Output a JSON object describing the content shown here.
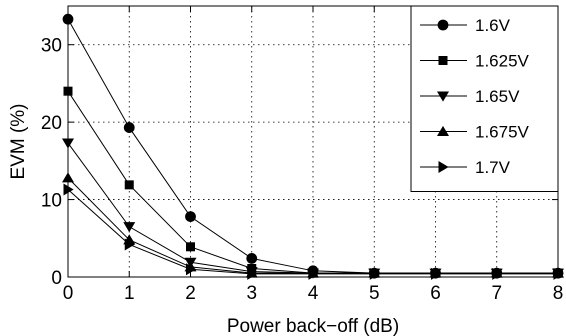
{
  "chart_data": {
    "type": "line",
    "title": "",
    "xlabel": "Power back−off (dB)",
    "ylabel": "EVM (%)",
    "x": [
      0,
      1,
      2,
      3,
      4,
      5,
      6,
      7,
      8
    ],
    "xlim": [
      0,
      8
    ],
    "ylim": [
      0,
      35
    ],
    "xticks": [
      "0",
      "1",
      "2",
      "3",
      "4",
      "5",
      "6",
      "7",
      "8"
    ],
    "yticks": [
      "0",
      "10",
      "20",
      "30"
    ],
    "ytick_values": [
      0,
      10,
      20,
      30
    ],
    "grid": true,
    "legend_position": "top-right",
    "series": [
      {
        "name": "1.6V",
        "marker": "circle",
        "values": [
          33.3,
          19.3,
          7.8,
          2.4,
          0.8,
          0.5,
          0.5,
          0.5,
          0.5
        ]
      },
      {
        "name": "1.625V",
        "marker": "square",
        "values": [
          24.0,
          11.9,
          3.9,
          1.1,
          0.5,
          0.5,
          0.5,
          0.5,
          0.5
        ]
      },
      {
        "name": "1.65V",
        "marker": "triangle-down",
        "values": [
          17.3,
          6.5,
          1.9,
          0.7,
          0.5,
          0.5,
          0.5,
          0.5,
          0.5
        ]
      },
      {
        "name": "1.675V",
        "marker": "triangle-up",
        "values": [
          12.8,
          4.8,
          1.3,
          0.5,
          0.5,
          0.5,
          0.5,
          0.5,
          0.5
        ]
      },
      {
        "name": "1.7V",
        "marker": "triangle-right",
        "values": [
          11.3,
          4.2,
          1.0,
          0.4,
          0.4,
          0.4,
          0.4,
          0.4,
          0.4
        ]
      }
    ],
    "colors": {
      "line": "#000000",
      "grid": "#000000",
      "background": "#ffffff"
    }
  }
}
